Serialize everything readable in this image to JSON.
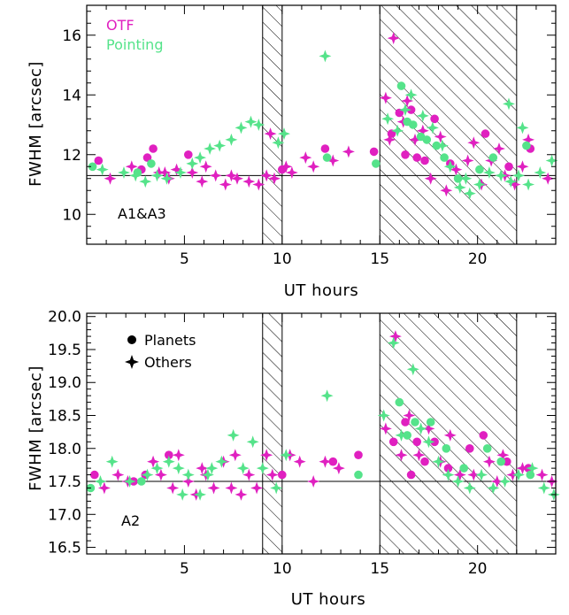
{
  "colors": {
    "otf": "#e020c0",
    "pointing": "#55e38a",
    "text": "#000000"
  },
  "chart_data": [
    {
      "type": "scatter",
      "panel_label": "A1&A3",
      "xlabel": "UT hours",
      "ylabel": "FWHM [arcsec]",
      "xlim": [
        0,
        24
      ],
      "ylim": [
        9,
        17
      ],
      "xticks": [
        {
          "v": 5,
          "label": "5"
        },
        {
          "v": 10,
          "label": "10"
        },
        {
          "v": 15,
          "label": "15"
        },
        {
          "v": 20,
          "label": "20"
        }
      ],
      "yticks": [
        {
          "v": 10,
          "label": "10"
        },
        {
          "v": 12,
          "label": "12"
        },
        {
          "v": 14,
          "label": "14"
        },
        {
          "v": 16,
          "label": "16"
        }
      ],
      "reference_y": 11.3,
      "shaded_ranges": [
        [
          9,
          10
        ],
        [
          15,
          22
        ]
      ],
      "legend": [
        {
          "label": "OTF",
          "color_key": "otf"
        },
        {
          "label": "Pointing",
          "color_key": "pointing"
        }
      ],
      "series": [
        {
          "name": "OTF",
          "color_key": "otf",
          "planets": [
            [
              0.6,
              11.8
            ],
            [
              2.8,
              11.5
            ],
            [
              3.1,
              11.9
            ],
            [
              3.4,
              12.2
            ],
            [
              5.2,
              12.0
            ],
            [
              10.0,
              11.5
            ],
            [
              12.2,
              12.2
            ],
            [
              14.7,
              12.1
            ],
            [
              15.6,
              12.7
            ],
            [
              16.3,
              12.0
            ],
            [
              16.9,
              11.9
            ],
            [
              17.3,
              11.8
            ],
            [
              17.8,
              13.2
            ],
            [
              18.6,
              11.7
            ],
            [
              20.4,
              12.7
            ],
            [
              21.6,
              11.6
            ],
            [
              22.7,
              12.2
            ],
            [
              16.0,
              13.4
            ],
            [
              16.6,
              13.5
            ]
          ],
          "others": [
            [
              1.2,
              11.2
            ],
            [
              2.3,
              11.6
            ],
            [
              3.7,
              11.4
            ],
            [
              4.2,
              11.2
            ],
            [
              4.6,
              11.5
            ],
            [
              5.4,
              11.4
            ],
            [
              5.9,
              11.1
            ],
            [
              6.6,
              11.3
            ],
            [
              7.1,
              11.0
            ],
            [
              7.7,
              11.2
            ],
            [
              8.3,
              11.1
            ],
            [
              8.8,
              11.0
            ],
            [
              9.2,
              11.3
            ],
            [
              9.4,
              12.7
            ],
            [
              9.6,
              11.2
            ],
            [
              10.2,
              11.6
            ],
            [
              10.5,
              11.4
            ],
            [
              11.2,
              11.9
            ],
            [
              11.6,
              11.6
            ],
            [
              12.6,
              11.8
            ],
            [
              13.4,
              12.1
            ],
            [
              15.3,
              13.9
            ],
            [
              15.5,
              12.5
            ],
            [
              15.7,
              15.9
            ],
            [
              16.2,
              13.1
            ],
            [
              16.4,
              13.8
            ],
            [
              16.8,
              12.5
            ],
            [
              17.2,
              12.8
            ],
            [
              17.6,
              11.2
            ],
            [
              18.1,
              12.6
            ],
            [
              18.4,
              10.8
            ],
            [
              18.9,
              11.5
            ],
            [
              19.5,
              11.8
            ],
            [
              19.8,
              12.4
            ],
            [
              20.2,
              11.0
            ],
            [
              20.7,
              11.8
            ],
            [
              21.1,
              12.2
            ],
            [
              21.4,
              11.3
            ],
            [
              21.9,
              11.0
            ],
            [
              22.3,
              11.6
            ],
            [
              22.6,
              12.5
            ],
            [
              23.6,
              11.2
            ],
            [
              4.0,
              11.4
            ],
            [
              6.1,
              11.6
            ],
            [
              7.4,
              11.3
            ]
          ]
        },
        {
          "name": "Pointing",
          "color_key": "pointing",
          "planets": [
            [
              0.3,
              11.6
            ],
            [
              2.6,
              11.4
            ],
            [
              3.3,
              11.7
            ],
            [
              12.3,
              11.9
            ],
            [
              14.8,
              11.7
            ],
            [
              16.1,
              14.3
            ],
            [
              16.7,
              13.0
            ],
            [
              17.1,
              12.6
            ],
            [
              17.4,
              12.5
            ],
            [
              17.9,
              12.3
            ],
            [
              18.3,
              11.9
            ],
            [
              19.0,
              11.2
            ],
            [
              20.1,
              11.5
            ],
            [
              20.8,
              11.9
            ],
            [
              22.5,
              12.3
            ],
            [
              16.4,
              13.1
            ]
          ],
          "others": [
            [
              0.8,
              11.5
            ],
            [
              1.9,
              11.4
            ],
            [
              2.5,
              11.3
            ],
            [
              3.0,
              11.1
            ],
            [
              3.6,
              11.3
            ],
            [
              4.1,
              11.2
            ],
            [
              4.8,
              11.4
            ],
            [
              5.4,
              11.7
            ],
            [
              5.8,
              11.9
            ],
            [
              6.3,
              12.2
            ],
            [
              6.8,
              12.3
            ],
            [
              7.4,
              12.5
            ],
            [
              7.9,
              12.9
            ],
            [
              8.4,
              13.1
            ],
            [
              8.8,
              13.0
            ],
            [
              9.8,
              12.4
            ],
            [
              10.1,
              12.7
            ],
            [
              12.2,
              15.3
            ],
            [
              15.4,
              13.2
            ],
            [
              15.9,
              12.8
            ],
            [
              16.3,
              13.5
            ],
            [
              16.6,
              14.0
            ],
            [
              17.2,
              13.3
            ],
            [
              17.7,
              12.9
            ],
            [
              18.2,
              12.3
            ],
            [
              18.6,
              11.6
            ],
            [
              19.1,
              10.9
            ],
            [
              19.6,
              10.7
            ],
            [
              20.1,
              11.0
            ],
            [
              20.6,
              11.4
            ],
            [
              21.2,
              11.3
            ],
            [
              21.7,
              11.1
            ],
            [
              22.1,
              11.3
            ],
            [
              22.3,
              12.9
            ],
            [
              22.6,
              11.0
            ],
            [
              23.2,
              11.4
            ],
            [
              23.8,
              11.8
            ],
            [
              21.6,
              13.7
            ],
            [
              19.4,
              11.2
            ]
          ]
        }
      ]
    },
    {
      "type": "scatter",
      "panel_label": "A2",
      "xlabel": "UT hours",
      "ylabel": "FWHM [arcsec]",
      "xlim": [
        0,
        24
      ],
      "ylim": [
        16.4,
        20.05
      ],
      "xticks": [
        {
          "v": 5,
          "label": "5"
        },
        {
          "v": 10,
          "label": "10"
        },
        {
          "v": 15,
          "label": "15"
        },
        {
          "v": 20,
          "label": "20"
        }
      ],
      "yticks": [
        {
          "v": 16.5,
          "label": "16.5"
        },
        {
          "v": 17.0,
          "label": "17.0"
        },
        {
          "v": 17.5,
          "label": "17.5"
        },
        {
          "v": 18.0,
          "label": "18.0"
        },
        {
          "v": 18.5,
          "label": "18.5"
        },
        {
          "v": 19.0,
          "label": "19.0"
        },
        {
          "v": 19.5,
          "label": "19.5"
        },
        {
          "v": 20.0,
          "label": "20.0"
        }
      ],
      "reference_y": 17.5,
      "shaded_ranges": [
        [
          9,
          10
        ],
        [
          15,
          22
        ]
      ],
      "legend": [
        {
          "label": "Planets",
          "marker": "circle"
        },
        {
          "label": "Others",
          "marker": "star"
        }
      ],
      "series": [
        {
          "name": "OTF",
          "color_key": "otf",
          "planets": [
            [
              0.4,
              17.6
            ],
            [
              2.4,
              17.5
            ],
            [
              3.0,
              17.6
            ],
            [
              4.2,
              17.9
            ],
            [
              10.0,
              17.6
            ],
            [
              12.6,
              17.8
            ],
            [
              13.9,
              17.9
            ],
            [
              15.7,
              18.1
            ],
            [
              16.3,
              18.4
            ],
            [
              16.9,
              18.1
            ],
            [
              17.3,
              17.8
            ],
            [
              17.8,
              18.1
            ],
            [
              18.5,
              17.7
            ],
            [
              19.6,
              18.0
            ],
            [
              20.3,
              18.2
            ],
            [
              21.5,
              17.8
            ],
            [
              22.6,
              17.7
            ],
            [
              16.6,
              17.6
            ]
          ],
          "others": [
            [
              0.9,
              17.4
            ],
            [
              1.6,
              17.6
            ],
            [
              2.1,
              17.5
            ],
            [
              3.4,
              17.8
            ],
            [
              3.8,
              17.6
            ],
            [
              4.4,
              17.4
            ],
            [
              4.7,
              17.9
            ],
            [
              5.2,
              17.5
            ],
            [
              5.6,
              17.3
            ],
            [
              6.1,
              17.6
            ],
            [
              6.5,
              17.4
            ],
            [
              7.0,
              17.8
            ],
            [
              7.4,
              17.4
            ],
            [
              7.9,
              17.3
            ],
            [
              8.3,
              17.6
            ],
            [
              8.7,
              17.4
            ],
            [
              9.2,
              17.9
            ],
            [
              9.5,
              17.6
            ],
            [
              10.4,
              17.9
            ],
            [
              10.9,
              17.8
            ],
            [
              11.6,
              17.5
            ],
            [
              12.2,
              17.8
            ],
            [
              12.9,
              17.7
            ],
            [
              15.3,
              18.3
            ],
            [
              15.8,
              19.7
            ],
            [
              16.1,
              17.9
            ],
            [
              16.5,
              18.5
            ],
            [
              17.0,
              17.9
            ],
            [
              17.5,
              18.3
            ],
            [
              18.1,
              17.8
            ],
            [
              18.6,
              18.2
            ],
            [
              19.1,
              17.6
            ],
            [
              19.8,
              17.6
            ],
            [
              20.6,
              17.8
            ],
            [
              21.0,
              17.5
            ],
            [
              21.3,
              17.9
            ],
            [
              21.8,
              17.6
            ],
            [
              22.3,
              17.7
            ],
            [
              23.3,
              17.6
            ],
            [
              23.8,
              17.5
            ],
            [
              5.9,
              17.7
            ],
            [
              7.6,
              17.9
            ]
          ]
        },
        {
          "name": "Pointing",
          "color_key": "pointing",
          "planets": [
            [
              0.2,
              17.4
            ],
            [
              2.8,
              17.5
            ],
            [
              13.9,
              17.6
            ],
            [
              16.4,
              18.2
            ],
            [
              16.8,
              18.4
            ],
            [
              17.6,
              18.4
            ],
            [
              18.4,
              18.0
            ],
            [
              19.3,
              17.7
            ],
            [
              20.5,
              18.0
            ],
            [
              21.2,
              17.8
            ],
            [
              22.7,
              17.6
            ],
            [
              16.0,
              18.7
            ]
          ],
          "others": [
            [
              0.7,
              17.5
            ],
            [
              1.3,
              17.8
            ],
            [
              2.2,
              17.5
            ],
            [
              3.1,
              17.6
            ],
            [
              3.6,
              17.7
            ],
            [
              4.2,
              17.8
            ],
            [
              4.7,
              17.7
            ],
            [
              5.2,
              17.6
            ],
            [
              5.8,
              17.3
            ],
            [
              6.4,
              17.7
            ],
            [
              6.9,
              17.8
            ],
            [
              7.5,
              18.2
            ],
            [
              8.0,
              17.7
            ],
            [
              8.5,
              18.1
            ],
            [
              9.0,
              17.7
            ],
            [
              9.7,
              17.4
            ],
            [
              10.2,
              17.9
            ],
            [
              12.3,
              18.8
            ],
            [
              15.2,
              18.5
            ],
            [
              15.7,
              19.6
            ],
            [
              16.1,
              18.2
            ],
            [
              16.7,
              19.2
            ],
            [
              17.1,
              18.3
            ],
            [
              17.5,
              18.1
            ],
            [
              18.0,
              17.8
            ],
            [
              18.5,
              17.6
            ],
            [
              19.0,
              17.5
            ],
            [
              19.6,
              17.4
            ],
            [
              20.2,
              17.6
            ],
            [
              20.8,
              17.4
            ],
            [
              21.4,
              17.5
            ],
            [
              22.1,
              17.6
            ],
            [
              22.8,
              17.7
            ],
            [
              23.4,
              17.4
            ],
            [
              23.9,
              17.3
            ],
            [
              4.9,
              17.3
            ],
            [
              6.2,
              17.6
            ]
          ]
        }
      ]
    }
  ]
}
